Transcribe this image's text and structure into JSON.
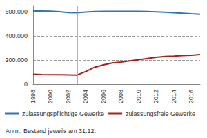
{
  "chart_data": {
    "type": "line",
    "x": [
      1998,
      1999,
      2000,
      2001,
      2002,
      2003,
      2004,
      2005,
      2006,
      2007,
      2008,
      2009,
      2010,
      2011,
      2012,
      2013,
      2014,
      2015,
      2016,
      2017
    ],
    "series": [
      {
        "name": "zulassungspflichtige Gewerke",
        "color": "#2e75b6",
        "values": [
          605000,
          604000,
          603000,
          598000,
          592000,
          590000,
          596000,
          600000,
          602000,
          602000,
          601000,
          601000,
          601000,
          600000,
          597000,
          594000,
          590000,
          586000,
          581000,
          577000
        ]
      },
      {
        "name": "zulassungsfreie Gewerke",
        "color": "#a8201a",
        "values": [
          82000,
          80000,
          79000,
          78000,
          77000,
          76000,
          105000,
          140000,
          160000,
          175000,
          183000,
          192000,
          202000,
          212000,
          222000,
          230000,
          233000,
          237000,
          240000,
          245000
        ]
      }
    ],
    "xlim": [
      1998,
      2017
    ],
    "xticks": [
      1998,
      2000,
      2002,
      2004,
      2006,
      2008,
      2010,
      2012,
      2014,
      2016
    ],
    "ylim": [
      0,
      650000
    ],
    "yticks": [
      0,
      {
        "value": 200000,
        "label": "200.000"
      },
      {
        "value": 400000,
        "label": "400.000"
      },
      {
        "value": 600000,
        "label": "600.000"
      }
    ],
    "reference_line": {
      "x": 2003,
      "color": "#999999"
    },
    "note": "Anm.: Bestand jeweils am 31.12.",
    "grid": true,
    "legend": "bottom"
  }
}
